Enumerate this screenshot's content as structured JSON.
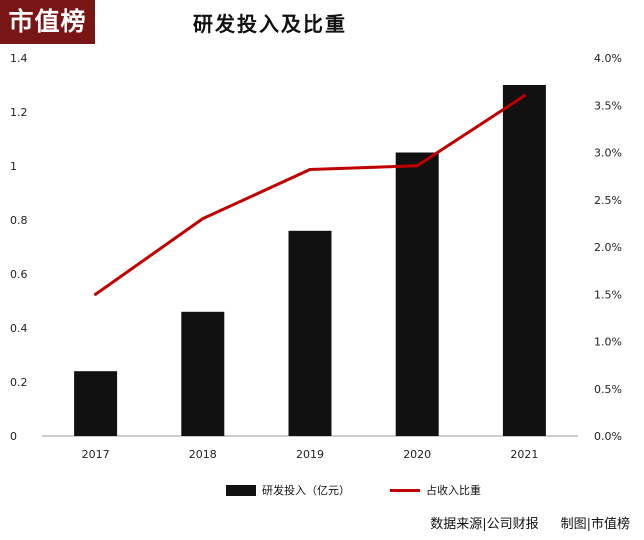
{
  "logo": {
    "text": "市值榜"
  },
  "footer": {
    "source": "数据来源|公司财报",
    "credit": "制图|市值榜"
  },
  "chart_data": {
    "type": "bar",
    "title": "研发投入及比重",
    "categories": [
      "2017",
      "2018",
      "2019",
      "2020",
      "2021"
    ],
    "series": [
      {
        "name": "研发投入（亿元）",
        "type": "bar",
        "axis": "left",
        "color": "#111111",
        "values": [
          0.24,
          0.46,
          0.76,
          1.05,
          1.3
        ]
      },
      {
        "name": "占收入比重",
        "type": "line",
        "axis": "right",
        "color": "#c00000",
        "values": [
          1.5,
          2.3,
          2.82,
          2.86,
          3.6
        ]
      }
    ],
    "y_left": {
      "ylim": [
        0,
        1.4
      ],
      "ticks": [
        "0",
        "0.2",
        "0.4",
        "0.6",
        "0.8",
        "1",
        "1.2",
        "1.4"
      ]
    },
    "y_right": {
      "ylim": [
        0,
        4.0
      ],
      "ticks": [
        "0.0%",
        "0.5%",
        "1.0%",
        "1.5%",
        "2.0%",
        "2.5%",
        "3.0%",
        "3.5%",
        "4.0%"
      ]
    },
    "legend": {
      "position": "bottom"
    }
  }
}
